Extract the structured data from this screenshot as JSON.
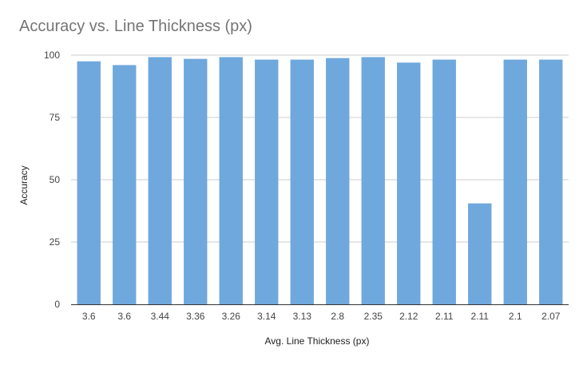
{
  "chart_data": {
    "type": "bar",
    "title": "Accuracy vs. Line Thickness (px)",
    "xlabel": "Avg. Line Thickness (px)",
    "ylabel": "Accuracy",
    "categories": [
      "3.6",
      "3.6",
      "3.44",
      "3.36",
      "3.26",
      "3.14",
      "3.13",
      "2.8",
      "2.35",
      "2.12",
      "2.11",
      "2.11",
      "2.1",
      "2.07"
    ],
    "series": [
      {
        "values": [
          97.5,
          96,
          99.2,
          98.5,
          99.2,
          98.2,
          98.2,
          98.8,
          99.2,
          97,
          98.2,
          40.5,
          98.2,
          98.2
        ]
      }
    ],
    "ylim": [
      0,
      100
    ],
    "yticks": [
      0,
      25,
      50,
      75,
      100
    ],
    "grid": true,
    "colors": {
      "bar": "#6fa8dc",
      "grid": "#cccccc",
      "axis": "#333333"
    }
  }
}
